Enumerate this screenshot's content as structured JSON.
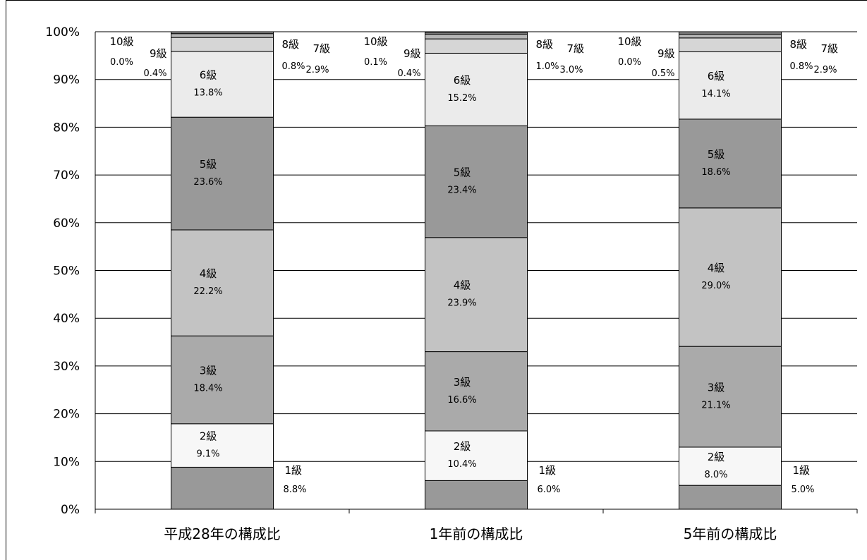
{
  "chart_data": {
    "type": "bar",
    "stacked": true,
    "percent": true,
    "categories": [
      "平成28年の構成比",
      "1年前の構成比",
      "5年前の構成比"
    ],
    "series": [
      {
        "name": "1級",
        "values": [
          8.8,
          6.0,
          5.0
        ],
        "labels": [
          "8.8%",
          "6.0%",
          "5.0%"
        ],
        "color": "#999999"
      },
      {
        "name": "2級",
        "values": [
          9.1,
          10.4,
          8.0
        ],
        "labels": [
          "9.1%",
          "10.4%",
          "8.0%"
        ],
        "color": "#f7f7f7"
      },
      {
        "name": "3級",
        "values": [
          18.4,
          16.6,
          21.1
        ],
        "labels": [
          "18.4%",
          "16.6%",
          "21.1%"
        ],
        "color": "#aaaaaa"
      },
      {
        "name": "4級",
        "values": [
          22.2,
          23.9,
          29.0
        ],
        "labels": [
          "22.2%",
          "23.9%",
          "29.0%"
        ],
        "color": "#c3c3c3"
      },
      {
        "name": "5級",
        "values": [
          23.6,
          23.4,
          18.6
        ],
        "labels": [
          "23.6%",
          "23.4%",
          "18.6%"
        ],
        "color": "#999999"
      },
      {
        "name": "6級",
        "values": [
          13.8,
          15.2,
          14.1
        ],
        "labels": [
          "13.8%",
          "15.2%",
          "14.1%"
        ],
        "color": "#ebebeb"
      },
      {
        "name": "7級",
        "values": [
          2.9,
          3.0,
          2.9
        ],
        "labels": [
          "2.9%",
          "3.0%",
          "2.9%"
        ],
        "color": "#d6d6d6"
      },
      {
        "name": "8級",
        "values": [
          0.8,
          1.0,
          0.8
        ],
        "labels": [
          "0.8%",
          "1.0%",
          "0.8%"
        ],
        "color": "#b5b5b5"
      },
      {
        "name": "9級",
        "values": [
          0.4,
          0.4,
          0.5
        ],
        "labels": [
          "0.4%",
          "0.4%",
          "0.5%"
        ],
        "color": "#888888"
      },
      {
        "name": "10級",
        "values": [
          0.0,
          0.1,
          0.0
        ],
        "labels": [
          "0.0%",
          "0.1%",
          "0.0%"
        ],
        "color": "#666666"
      }
    ],
    "yticks": [
      "0%",
      "10%",
      "20%",
      "30%",
      "40%",
      "50%",
      "60%",
      "70%",
      "80%",
      "90%",
      "100%"
    ],
    "ylim": [
      0,
      100
    ],
    "grid": true,
    "legend": "none"
  }
}
